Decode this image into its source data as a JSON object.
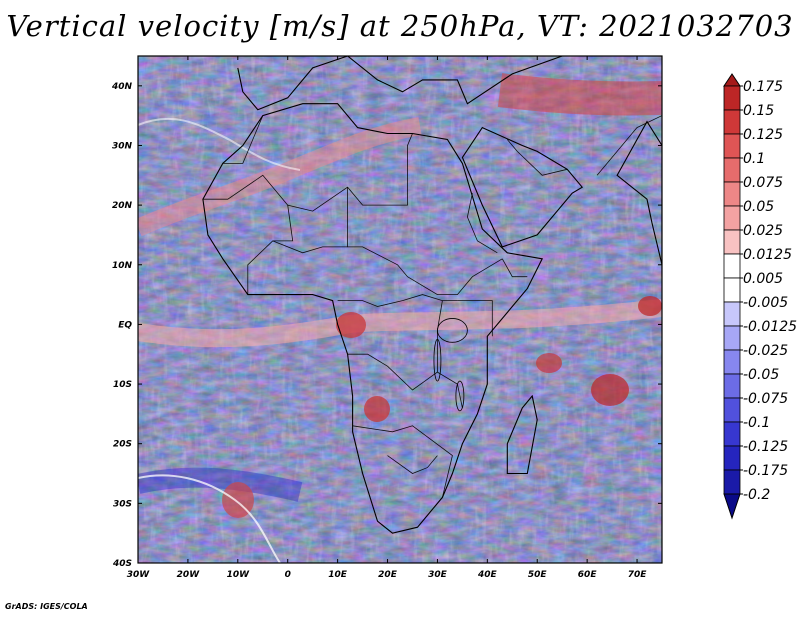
{
  "title": "Vertical velocity [m/s] at 250hPa, VT: 2021032703",
  "credit": "GrADS: IGES/COLA",
  "map": {
    "longitude_labels": [
      "30W",
      "20W",
      "10W",
      "0",
      "10E",
      "20E",
      "30E",
      "40E",
      "50E",
      "60E",
      "70E"
    ],
    "latitude_labels": [
      "40N",
      "30N",
      "20N",
      "10N",
      "EQ",
      "10S",
      "20S",
      "30S",
      "40S"
    ],
    "longitude_range": [
      -30,
      75
    ],
    "latitude_range": [
      -40,
      45
    ]
  },
  "colorbar": {
    "levels": [
      "0.175",
      "0.15",
      "0.125",
      "0.1",
      "0.075",
      "0.05",
      "0.025",
      "0.0125",
      "0.005",
      "-0.005",
      "-0.0125",
      "-0.025",
      "-0.05",
      "-0.075",
      "-0.1",
      "-0.125",
      "-0.175",
      "-0.2"
    ],
    "colors": [
      "#a51a1a",
      "#bd2626",
      "#cf3838",
      "#df5555",
      "#e66c6c",
      "#ed8787",
      "#f3a2a2",
      "#f8c2c2",
      "#ffffff",
      "#ffffff",
      "#c7c7fb",
      "#a7a7f6",
      "#8787ef",
      "#6c6ce6",
      "#5151dd",
      "#3737d0",
      "#2525be",
      "#1a1aa8",
      "#0a0a88"
    ]
  }
}
